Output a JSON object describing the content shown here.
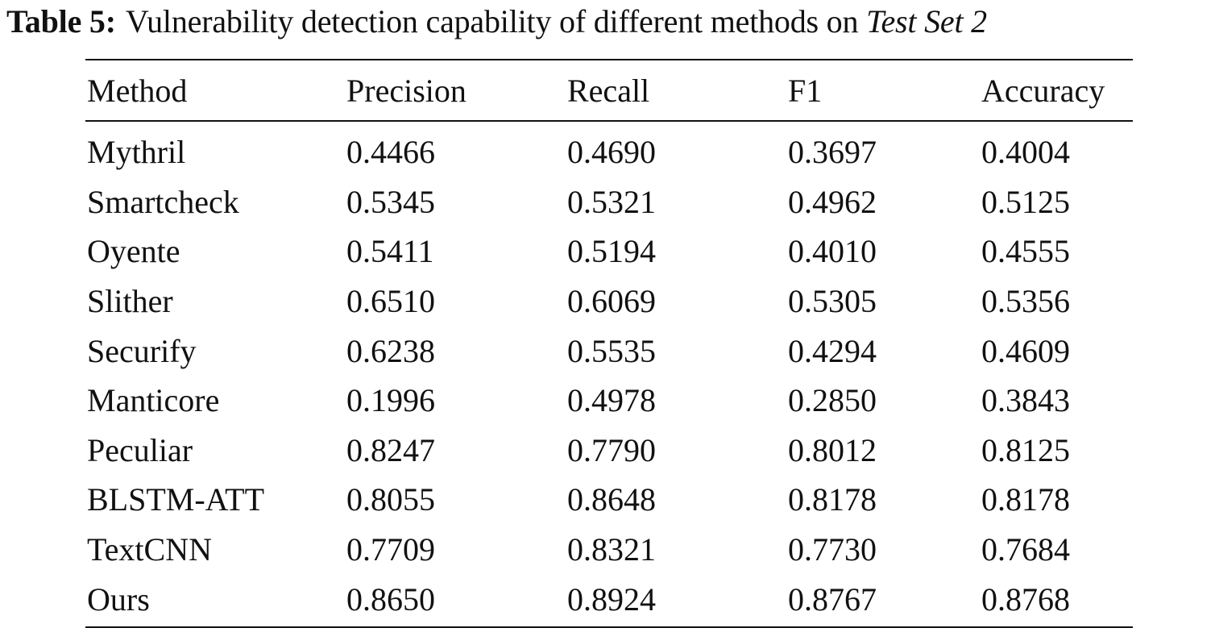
{
  "caption": {
    "label": "Table 5:",
    "text": "Vulnerability detection capability of different methods on",
    "dataset": "Test Set 2"
  },
  "table": {
    "headers": [
      "Method",
      "Precision",
      "Recall",
      "F1",
      "Accuracy"
    ],
    "rows": [
      [
        "Mythril",
        "0.4466",
        "0.4690",
        "0.3697",
        "0.4004"
      ],
      [
        "Smartcheck",
        "0.5345",
        "0.5321",
        "0.4962",
        "0.5125"
      ],
      [
        "Oyente",
        "0.5411",
        "0.5194",
        "0.4010",
        "0.4555"
      ],
      [
        "Slither",
        "0.6510",
        "0.6069",
        "0.5305",
        "0.5356"
      ],
      [
        "Securify",
        "0.6238",
        "0.5535",
        "0.4294",
        "0.4609"
      ],
      [
        "Manticore",
        "0.1996",
        "0.4978",
        "0.2850",
        "0.3843"
      ],
      [
        "Peculiar",
        "0.8247",
        "0.7790",
        "0.8012",
        "0.8125"
      ],
      [
        "BLSTM-ATT",
        "0.8055",
        "0.8648",
        "0.8178",
        "0.8178"
      ],
      [
        "TextCNN",
        "0.7709",
        "0.8321",
        "0.7730",
        "0.7684"
      ],
      [
        "Ours",
        "0.8650",
        "0.8924",
        "0.8767",
        "0.8768"
      ]
    ]
  }
}
